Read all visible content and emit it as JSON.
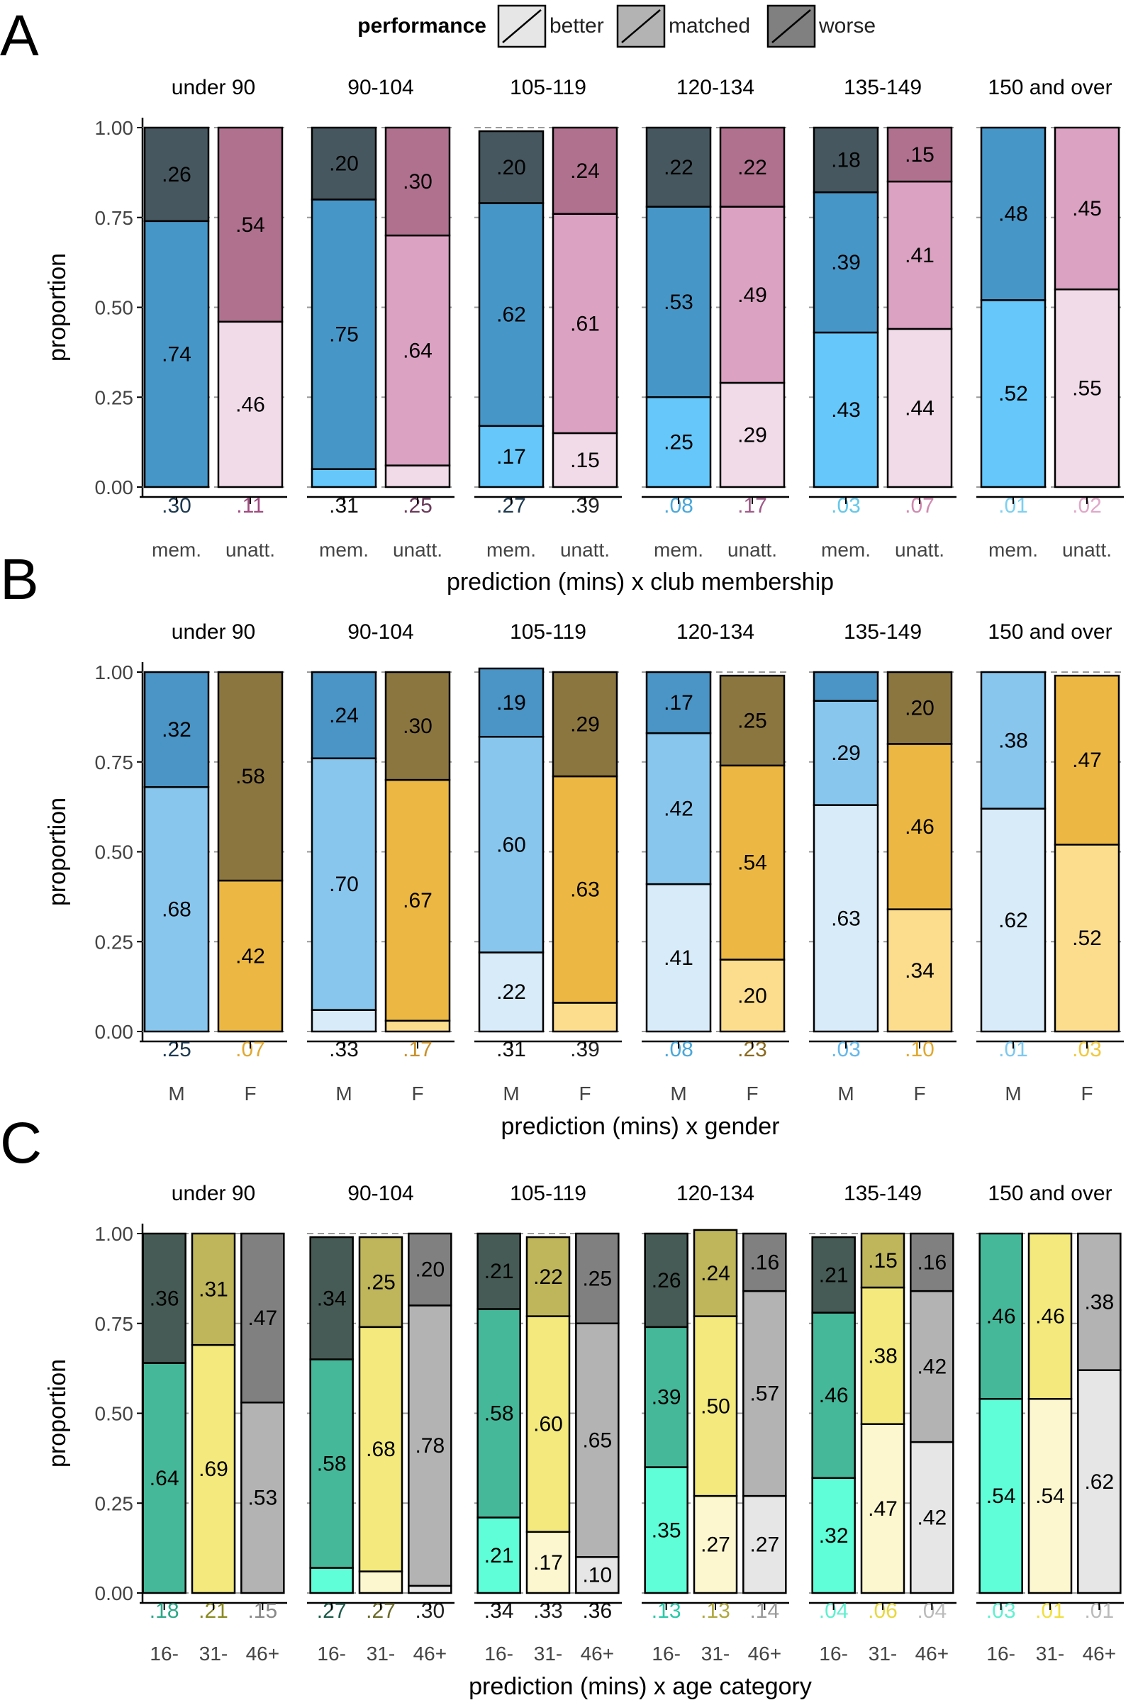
{
  "legend": {
    "title": "performance",
    "items": [
      {
        "label": "better",
        "color": "#e6e6e6"
      },
      {
        "label": "matched",
        "color": "#b3b3b3"
      },
      {
        "label": "worse",
        "color": "#808080"
      }
    ]
  },
  "panels": [
    {
      "letter": "A",
      "ylabel": "proportion",
      "xlabel": "prediction (mins) x club membership"
    },
    {
      "letter": "B",
      "ylabel": "proportion",
      "xlabel": "prediction (mins) x gender"
    },
    {
      "letter": "C",
      "ylabel": "proportion",
      "xlabel": "prediction (mins) x age category"
    }
  ],
  "chart_data": [
    {
      "type": "bar",
      "stacked": true,
      "ylim": [
        0,
        1
      ],
      "yticks": [
        "0.00",
        "0.25",
        "0.50",
        "0.75",
        "1.00"
      ],
      "grid": true,
      "facets": [
        "under 90",
        "90-104",
        "105-119",
        "120-134",
        "135-149",
        "150 and over"
      ],
      "groups": [
        "mem.",
        "unatt."
      ],
      "group_colors": {
        "mem.": {
          "better": "#66c8fa",
          "matched": "#4796c8",
          "worse": "#46575f",
          "label": "#1e4a63"
        },
        "unatt.": {
          "better": "#f1dbe8",
          "matched": "#dba2c2",
          "worse": "#b0718f",
          "label": "#a04a80"
        }
      },
      "bars": [
        [
          {
            "better": 0.0,
            "matched": 0.74,
            "worse": 0.26,
            "labels": {
              "better": "",
              "matched": ".74",
              "worse": ".26"
            },
            "share": ".30"
          },
          {
            "better": 0.46,
            "matched": 0.0,
            "worse": 0.54,
            "labels": {
              "better": ".46",
              "matched": "",
              "worse": ".54"
            },
            "share": ".11"
          }
        ],
        [
          {
            "better": 0.05,
            "matched": 0.75,
            "worse": 0.2,
            "labels": {
              "better": "",
              "matched": ".75",
              "worse": ".20"
            },
            "share": ".31"
          },
          {
            "better": 0.06,
            "matched": 0.64,
            "worse": 0.3,
            "labels": {
              "better": "",
              "matched": ".64",
              "worse": ".30"
            },
            "share": ".25"
          }
        ],
        [
          {
            "better": 0.17,
            "matched": 0.62,
            "worse": 0.2,
            "labels": {
              "better": ".17",
              "matched": ".62",
              "worse": ".20"
            },
            "share": ".27"
          },
          {
            "better": 0.15,
            "matched": 0.61,
            "worse": 0.24,
            "labels": {
              "better": ".15",
              "matched": ".61",
              "worse": ".24"
            },
            "share": ".39"
          }
        ],
        [
          {
            "better": 0.25,
            "matched": 0.53,
            "worse": 0.22,
            "labels": {
              "better": ".25",
              "matched": ".53",
              "worse": ".22"
            },
            "share": ".08"
          },
          {
            "better": 0.29,
            "matched": 0.49,
            "worse": 0.22,
            "labels": {
              "better": ".29",
              "matched": ".49",
              "worse": ".22"
            },
            "share": ".17"
          }
        ],
        [
          {
            "better": 0.43,
            "matched": 0.39,
            "worse": 0.18,
            "labels": {
              "better": ".43",
              "matched": ".39",
              "worse": ".18"
            },
            "share": ".03"
          },
          {
            "better": 0.44,
            "matched": 0.41,
            "worse": 0.15,
            "labels": {
              "better": ".44",
              "matched": ".41",
              "worse": ".15"
            },
            "share": ".07"
          }
        ],
        [
          {
            "better": 0.52,
            "matched": 0.48,
            "worse": 0.0,
            "labels": {
              "better": ".52",
              "matched": ".48",
              "worse": ""
            },
            "share": ".01"
          },
          {
            "better": 0.55,
            "matched": 0.45,
            "worse": 0.0,
            "labels": {
              "better": ".55",
              "matched": ".45",
              "worse": ""
            },
            "share": ".02"
          }
        ]
      ],
      "share_colors": [
        [
          "#1e3a50",
          "#a04a80"
        ],
        [
          "#111111",
          "#6a3a5a"
        ],
        [
          "#1e3a50",
          "#222222"
        ],
        [
          "#4aa8da",
          "#a05a88"
        ],
        [
          "#66c8ea",
          "#d08ab0"
        ],
        [
          "#7dd0f0",
          "#e0a8c8"
        ]
      ]
    },
    {
      "type": "bar",
      "stacked": true,
      "ylim": [
        0,
        1
      ],
      "yticks": [
        "0.00",
        "0.25",
        "0.50",
        "0.75",
        "1.00"
      ],
      "grid": true,
      "facets": [
        "under 90",
        "90-104",
        "105-119",
        "120-134",
        "135-149",
        "150 and over"
      ],
      "groups": [
        "M",
        "F"
      ],
      "group_colors": {
        "M": {
          "better": "#d7ebf9",
          "matched": "#88c6ee",
          "worse": "#4a94c6",
          "label": "#1e4a63"
        },
        "F": {
          "better": "#fcdd8e",
          "matched": "#ecb843",
          "worse": "#8c7640",
          "label": "#c8a030"
        }
      },
      "bars": [
        [
          {
            "better": 0.0,
            "matched": 0.68,
            "worse": 0.32,
            "labels": {
              "better": "",
              "matched": ".68",
              "worse": ".32"
            },
            "share": ".25"
          },
          {
            "better": 0.0,
            "matched": 0.42,
            "worse": 0.58,
            "labels": {
              "better": "",
              "matched": ".42",
              "worse": ".58"
            },
            "share": ".07"
          }
        ],
        [
          {
            "better": 0.06,
            "matched": 0.7,
            "worse": 0.24,
            "labels": {
              "better": "",
              "matched": ".70",
              "worse": ".24"
            },
            "share": ".33"
          },
          {
            "better": 0.03,
            "matched": 0.67,
            "worse": 0.3,
            "labels": {
              "better": "",
              "matched": ".67",
              "worse": ".30"
            },
            "share": ".17"
          }
        ],
        [
          {
            "better": 0.22,
            "matched": 0.6,
            "worse": 0.19,
            "labels": {
              "better": ".22",
              "matched": ".60",
              "worse": ".19"
            },
            "share": ".31"
          },
          {
            "better": 0.08,
            "matched": 0.63,
            "worse": 0.29,
            "labels": {
              "better": "",
              "matched": ".63",
              "worse": ".29"
            },
            "share": ".39"
          }
        ],
        [
          {
            "better": 0.41,
            "matched": 0.42,
            "worse": 0.17,
            "labels": {
              "better": ".41",
              "matched": ".42",
              "worse": ".17"
            },
            "share": ".08"
          },
          {
            "better": 0.2,
            "matched": 0.54,
            "worse": 0.25,
            "labels": {
              "better": ".20",
              "matched": ".54",
              "worse": ".25"
            },
            "share": ".23"
          }
        ],
        [
          {
            "better": 0.63,
            "matched": 0.29,
            "worse": 0.08,
            "labels": {
              "better": ".63",
              "matched": ".29",
              "worse": ""
            },
            "share": ".03"
          },
          {
            "better": 0.34,
            "matched": 0.46,
            "worse": 0.2,
            "labels": {
              "better": ".34",
              "matched": ".46",
              "worse": ".20"
            },
            "share": ".10"
          }
        ],
        [
          {
            "better": 0.62,
            "matched": 0.38,
            "worse": 0.0,
            "labels": {
              "better": ".62",
              "matched": ".38",
              "worse": ""
            },
            "share": ".01"
          },
          {
            "better": 0.52,
            "matched": 0.47,
            "worse": 0.0,
            "labels": {
              "better": ".52",
              "matched": ".47",
              "worse": ""
            },
            "share": ".03"
          }
        ]
      ],
      "share_colors": [
        [
          "#1e3a50",
          "#e0a830"
        ],
        [
          "#111111",
          "#c8902a"
        ],
        [
          "#111111",
          "#222222"
        ],
        [
          "#4aa8da",
          "#8a6a20"
        ],
        [
          "#66b8ea",
          "#e0a830"
        ],
        [
          "#7dc8f0",
          "#f0c840"
        ]
      ]
    },
    {
      "type": "bar",
      "stacked": true,
      "ylim": [
        0,
        1
      ],
      "yticks": [
        "0.00",
        "0.25",
        "0.50",
        "0.75",
        "1.00"
      ],
      "grid": true,
      "facets": [
        "under 90",
        "90-104",
        "105-119",
        "120-134",
        "135-149",
        "150 and over"
      ],
      "groups": [
        "16-",
        "31-",
        "46+"
      ],
      "group_colors": {
        "16-": {
          "better": "#5ffdd8",
          "matched": "#45b89a",
          "worse": "#465b55",
          "label": "#1e7a64"
        },
        "31-": {
          "better": "#fcf7cf",
          "matched": "#f3e97c",
          "worse": "#bfb55a",
          "label": "#8a8020"
        },
        "46+": {
          "better": "#e6e6e6",
          "matched": "#b3b3b3",
          "worse": "#808080",
          "label": "#888888"
        }
      },
      "bars": [
        [
          {
            "better": 0.0,
            "matched": 0.64,
            "worse": 0.36,
            "labels": {
              "better": "",
              "matched": ".64",
              "worse": ".36"
            },
            "share": ".18"
          },
          {
            "better": 0.0,
            "matched": 0.69,
            "worse": 0.31,
            "labels": {
              "better": "",
              "matched": ".69",
              "worse": ".31"
            },
            "share": ".21"
          },
          {
            "better": 0.0,
            "matched": 0.53,
            "worse": 0.47,
            "labels": {
              "better": "",
              "matched": ".53",
              "worse": ".47"
            },
            "share": ".15"
          }
        ],
        [
          {
            "better": 0.07,
            "matched": 0.58,
            "worse": 0.34,
            "labels": {
              "better": "",
              "matched": ".58",
              "worse": ".34"
            },
            "share": ".27"
          },
          {
            "better": 0.06,
            "matched": 0.68,
            "worse": 0.25,
            "labels": {
              "better": "",
              "matched": ".68",
              "worse": ".25"
            },
            "share": ".27"
          },
          {
            "better": 0.02,
            "matched": 0.78,
            "worse": 0.2,
            "labels": {
              "better": "",
              "matched": ".78",
              "worse": ".20"
            },
            "share": ".30"
          }
        ],
        [
          {
            "better": 0.21,
            "matched": 0.58,
            "worse": 0.21,
            "labels": {
              "better": ".21",
              "matched": ".58",
              "worse": ".21"
            },
            "share": ".34"
          },
          {
            "better": 0.17,
            "matched": 0.6,
            "worse": 0.22,
            "labels": {
              "better": ".17",
              "matched": ".60",
              "worse": ".22"
            },
            "share": ".33"
          },
          {
            "better": 0.1,
            "matched": 0.65,
            "worse": 0.25,
            "labels": {
              "better": ".10",
              "matched": ".65",
              "worse": ".25"
            },
            "share": ".36"
          }
        ],
        [
          {
            "better": 0.35,
            "matched": 0.39,
            "worse": 0.26,
            "labels": {
              "better": ".35",
              "matched": ".39",
              "worse": ".26"
            },
            "share": ".13"
          },
          {
            "better": 0.27,
            "matched": 0.5,
            "worse": 0.24,
            "labels": {
              "better": ".27",
              "matched": ".50",
              "worse": ".24"
            },
            "share": ".13"
          },
          {
            "better": 0.27,
            "matched": 0.57,
            "worse": 0.16,
            "labels": {
              "better": ".27",
              "matched": ".57",
              "worse": ".16"
            },
            "share": ".14"
          }
        ],
        [
          {
            "better": 0.32,
            "matched": 0.46,
            "worse": 0.21,
            "labels": {
              "better": ".32",
              "matched": ".46",
              "worse": ".21"
            },
            "share": ".04"
          },
          {
            "better": 0.47,
            "matched": 0.38,
            "worse": 0.15,
            "labels": {
              "better": ".47",
              "matched": ".38",
              "worse": ".15"
            },
            "share": ".06"
          },
          {
            "better": 0.42,
            "matched": 0.42,
            "worse": 0.16,
            "labels": {
              "better": ".42",
              "matched": ".42",
              "worse": ".16"
            },
            "share": ".04"
          }
        ],
        [
          {
            "better": 0.54,
            "matched": 0.46,
            "worse": 0.0,
            "labels": {
              "better": ".54",
              "matched": ".46",
              "worse": ""
            },
            "share": ".03"
          },
          {
            "better": 0.54,
            "matched": 0.46,
            "worse": 0.0,
            "labels": {
              "better": ".54",
              "matched": ".46",
              "worse": ""
            },
            "share": ".01"
          },
          {
            "better": 0.62,
            "matched": 0.38,
            "worse": 0.0,
            "labels": {
              "better": ".62",
              "matched": ".38",
              "worse": ""
            },
            "share": ".01"
          }
        ]
      ],
      "share_colors": [
        [
          "#2aa888",
          "#8a8a20",
          "#888888"
        ],
        [
          "#1e5a4a",
          "#6a6a2a",
          "#222222"
        ],
        [
          "#111111",
          "#222222",
          "#111111"
        ],
        [
          "#2ac8a8",
          "#b0a840",
          "#999999"
        ],
        [
          "#5ff0d0",
          "#e8d840",
          "#bbbbbb"
        ],
        [
          "#5ff0d0",
          "#f0e040",
          "#bbbbbb"
        ]
      ]
    }
  ]
}
